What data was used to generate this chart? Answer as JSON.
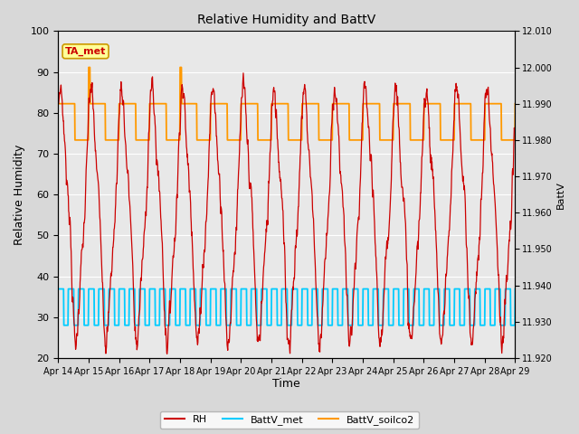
{
  "title": "Relative Humidity and BattV",
  "xlabel": "Time",
  "ylabel_left": "Relative Humidity",
  "ylabel_right": "BattV",
  "ylim_left": [
    20,
    100
  ],
  "ylim_right": [
    11.92,
    12.01
  ],
  "fig_bg_color": "#d8d8d8",
  "plot_bg_color": "#e8e8e8",
  "annotation_text": "TA_met",
  "annotation_bg": "#ffff99",
  "annotation_border": "#cc9900",
  "annotation_text_color": "#cc0000",
  "xtick_labels": [
    "Apr 14",
    "Apr 15",
    "Apr 16",
    "Apr 17",
    "Apr 18",
    "Apr 19",
    "Apr 20",
    "Apr 21",
    "Apr 22",
    "Apr 23",
    "Apr 24",
    "Apr 25",
    "Apr 26",
    "Apr 27",
    "Apr 28",
    "Apr 29"
  ],
  "rh_color": "#cc0000",
  "battv_met_color": "#00ccff",
  "battv_soilco2_color": "#ff9900",
  "right_yticks": [
    11.92,
    11.93,
    11.94,
    11.95,
    11.96,
    11.97,
    11.98,
    11.99,
    12.0,
    12.01
  ],
  "left_yticks": [
    20,
    30,
    40,
    50,
    60,
    70,
    80,
    90,
    100
  ]
}
